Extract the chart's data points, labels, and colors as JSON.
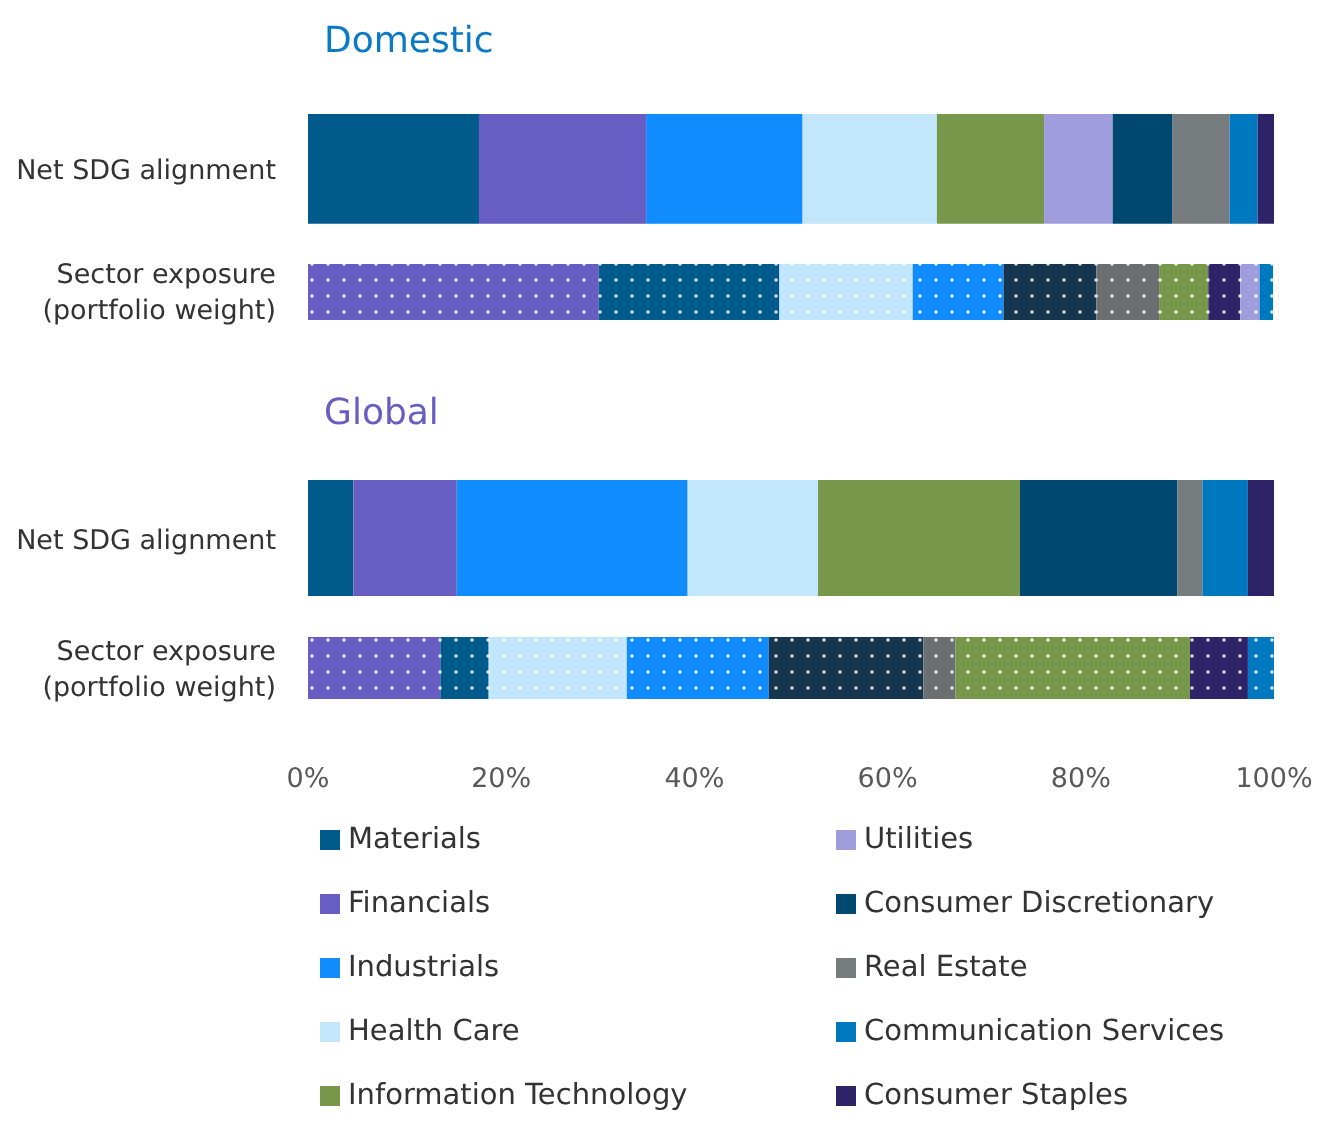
{
  "chart_data": [
    {
      "type": "bar",
      "orientation": "horizontal",
      "stacked": true,
      "title": "Domestic",
      "categories": [
        "Net SDG alignment",
        "Sector exposure (portfolio weight)"
      ],
      "xlim": [
        0,
        100
      ],
      "tick_labels": "y",
      "legend": false,
      "series": [
        {
          "color": "#005a8c",
          "values": [
            17.7,
            null
          ]
        },
        {
          "color": "#675dc2",
          "values": [
            17.3,
            null
          ]
        },
        {
          "color": "#118cff",
          "values": [
            16.2,
            null
          ]
        },
        {
          "color": "#c2e7fc",
          "values": [
            13.9,
            null
          ]
        },
        {
          "color": "#77984a",
          "values": [
            11.1,
            null
          ]
        },
        {
          "color": "#a09ddc",
          "values": [
            7.1,
            null
          ]
        },
        {
          "color": "#00486f",
          "values": [
            6.2,
            null
          ]
        },
        {
          "color": "#767b7d",
          "values": [
            5.9,
            null
          ]
        },
        {
          "color": "#0078c0",
          "values": [
            2.9,
            null
          ]
        },
        {
          "color": "#2d2366",
          "values": [
            1.7,
            null
          ]
        },
        {
          "color": "#675dc2",
          "values": [
            null,
            30.1
          ]
        },
        {
          "color": "#005a8c",
          "values": [
            null,
            18.7
          ]
        },
        {
          "color": "#c2e7fc",
          "values": [
            null,
            13.8
          ]
        },
        {
          "color": "#118cff",
          "values": [
            null,
            9.4
          ]
        },
        {
          "color": "#15364e",
          "values": [
            null,
            9.6
          ]
        },
        {
          "color": "#6b6f71",
          "values": [
            null,
            6.5
          ]
        },
        {
          "color": "#77984a",
          "values": [
            null,
            5.1
          ]
        },
        {
          "color": "#2d2366",
          "values": [
            null,
            3.3
          ]
        },
        {
          "color": "#a09ddc",
          "values": [
            null,
            2.0
          ]
        },
        {
          "color": "#0078c0",
          "values": [
            null,
            1.4
          ]
        }
      ]
    },
    {
      "type": "bar",
      "orientation": "horizontal",
      "stacked": true,
      "title": "Global",
      "categories": [
        "Net SDG alignment",
        "Sector exposure (portfolio weight)"
      ],
      "xlim": [
        0,
        100
      ],
      "xticks": [
        {
          "value": 0,
          "label": "0%"
        },
        {
          "value": 20,
          "label": "20%"
        },
        {
          "value": 40,
          "label": "40%"
        },
        {
          "value": 60,
          "label": "60%"
        },
        {
          "value": 80,
          "label": "80%"
        },
        {
          "value": 100,
          "label": "100%"
        }
      ],
      "legend": "bottom",
      "series": [
        {
          "name": "Materials",
          "color": "#005a8c",
          "values": [
            4.7,
            null
          ]
        },
        {
          "name": "Financials",
          "color": "#675dc2",
          "values": [
            10.7,
            null
          ]
        },
        {
          "name": "Industrials",
          "color": "#118cff",
          "values": [
            23.9,
            null
          ]
        },
        {
          "name": "Health Care",
          "color": "#c2e7fc",
          "values": [
            13.5,
            null
          ]
        },
        {
          "name": "Information Technology",
          "color": "#77984a",
          "values": [
            20.9,
            null
          ]
        },
        {
          "name": "Utilities",
          "color": "#a09ddc",
          "values": [
            0,
            null
          ]
        },
        {
          "name": "Consumer Discretionary",
          "color": "#00486f",
          "values": [
            16.3,
            null
          ]
        },
        {
          "name": "Real Estate",
          "color": "#767b7d",
          "values": [
            2.6,
            null
          ]
        },
        {
          "name": "Communication Services",
          "color": "#0078c0",
          "values": [
            4.7,
            null
          ]
        },
        {
          "name": "Consumer Staples",
          "color": "#2d2366",
          "values": [
            2.7,
            null
          ]
        },
        {
          "color": "#675dc2",
          "values": [
            null,
            13.7
          ]
        },
        {
          "color": "#005a8c",
          "values": [
            null,
            5.0
          ]
        },
        {
          "color": "#c2e7fc",
          "values": [
            null,
            14.3
          ]
        },
        {
          "color": "#118cff",
          "values": [
            null,
            14.7
          ]
        },
        {
          "color": "#15364e",
          "values": [
            null,
            16.0
          ]
        },
        {
          "color": "#6b6f71",
          "values": [
            null,
            3.3
          ]
        },
        {
          "color": "#77984a",
          "values": [
            null,
            24.3
          ]
        },
        {
          "color": "#2d2366",
          "values": [
            null,
            6.0
          ]
        },
        {
          "color": "#a09ddc",
          "values": [
            null,
            0
          ]
        },
        {
          "color": "#0078c0",
          "values": [
            null,
            2.7
          ]
        }
      ]
    }
  ]
}
